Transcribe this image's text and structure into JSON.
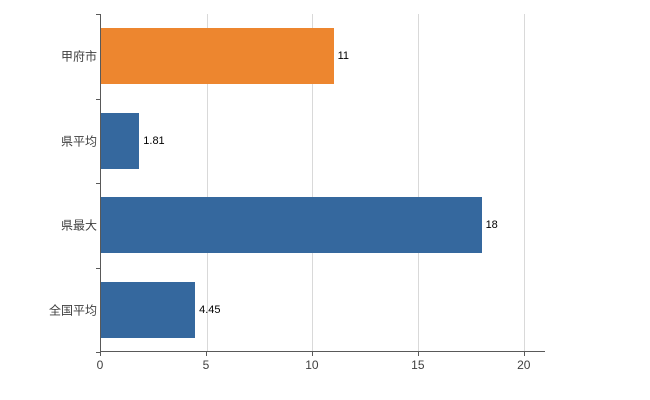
{
  "chart_data": {
    "type": "bar",
    "orientation": "horizontal",
    "title": "",
    "xlabel": "",
    "ylabel": "",
    "categories": [
      "甲府市",
      "県平均",
      "県最大",
      "全国平均"
    ],
    "values": [
      11,
      1.81,
      18,
      4.45
    ],
    "value_labels": [
      "11",
      "1.81",
      "18",
      "4.45"
    ],
    "bar_colors": [
      "#ED862F",
      "#35689E",
      "#35689E",
      "#35689E"
    ],
    "xlim": [
      0,
      20
    ],
    "x_ticks": [
      0,
      5,
      10,
      15,
      20
    ],
    "x_tick_labels": [
      "0",
      "5",
      "10",
      "15",
      "20"
    ],
    "grid": "vertical",
    "legend": "none",
    "colors": {
      "gridline": "#D9D9D9",
      "axis": "#595959",
      "background": "#FFFFFF",
      "value_label_text": "#000000",
      "axis_label_text": "#404040"
    }
  }
}
